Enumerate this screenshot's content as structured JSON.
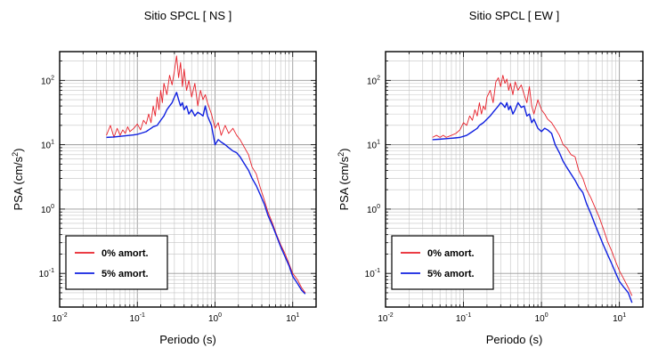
{
  "chart_data": [
    {
      "type": "line",
      "title": "Sitio SPCL [ NS ]",
      "xlabel": "Periodo (s)",
      "ylabel_main": "PSA (cm/s",
      "ylabel_sup": "2",
      "ylabel_end": ")",
      "xscale": "log",
      "yscale": "log",
      "xlim": [
        0.01,
        20
      ],
      "ylim": [
        0.03,
        280
      ],
      "grid": true,
      "legend": "bottom-left",
      "x_ticks": [
        {
          "value": 0.01,
          "base": "10",
          "exp": "-2"
        },
        {
          "value": 0.1,
          "base": "10",
          "exp": "-1"
        },
        {
          "value": 1,
          "base": "10",
          "exp": "0"
        },
        {
          "value": 10,
          "base": "10",
          "exp": "1"
        }
      ],
      "y_ticks": [
        {
          "value": 0.1,
          "base": "10",
          "exp": "-1"
        },
        {
          "value": 1,
          "base": "10",
          "exp": "0"
        },
        {
          "value": 10,
          "base": "10",
          "exp": "1"
        },
        {
          "value": 100,
          "base": "10",
          "exp": "2"
        }
      ],
      "series": [
        {
          "name": "0% amort.",
          "color": "#e8202a",
          "x": [
            0.04,
            0.045,
            0.05,
            0.055,
            0.06,
            0.065,
            0.07,
            0.075,
            0.08,
            0.09,
            0.1,
            0.11,
            0.12,
            0.13,
            0.14,
            0.15,
            0.16,
            0.17,
            0.18,
            0.19,
            0.2,
            0.21,
            0.22,
            0.24,
            0.26,
            0.28,
            0.3,
            0.32,
            0.34,
            0.36,
            0.38,
            0.4,
            0.43,
            0.46,
            0.5,
            0.55,
            0.6,
            0.65,
            0.7,
            0.75,
            0.8,
            0.9,
            1.0,
            1.1,
            1.2,
            1.35,
            1.5,
            1.7,
            1.9,
            2.1,
            2.4,
            2.7,
            3.0,
            3.4,
            3.8,
            4.3,
            4.8,
            5.5,
            6.2,
            7.0,
            8.0,
            9.0,
            10.0,
            11.5,
            13.0,
            14.5
          ],
          "y": [
            14,
            20,
            13,
            18,
            14,
            17,
            15,
            19,
            16,
            18,
            21,
            17,
            24,
            21,
            30,
            22,
            40,
            28,
            55,
            35,
            70,
            45,
            90,
            60,
            120,
            85,
            140,
            240,
            110,
            190,
            80,
            150,
            70,
            100,
            55,
            90,
            40,
            70,
            50,
            60,
            45,
            30,
            18,
            22,
            14,
            20,
            15,
            18,
            14,
            12,
            9,
            7,
            4.5,
            3.5,
            2.2,
            1.4,
            0.9,
            0.6,
            0.4,
            0.28,
            0.2,
            0.14,
            0.1,
            0.08,
            0.06,
            0.05
          ]
        },
        {
          "name": "5% amort.",
          "color": "#1020e0",
          "x": [
            0.04,
            0.05,
            0.06,
            0.07,
            0.08,
            0.09,
            0.1,
            0.11,
            0.12,
            0.13,
            0.14,
            0.15,
            0.16,
            0.18,
            0.2,
            0.22,
            0.24,
            0.26,
            0.28,
            0.3,
            0.32,
            0.34,
            0.36,
            0.38,
            0.4,
            0.43,
            0.46,
            0.5,
            0.55,
            0.6,
            0.65,
            0.7,
            0.75,
            0.8,
            0.9,
            1.0,
            1.1,
            1.2,
            1.35,
            1.5,
            1.7,
            1.9,
            2.1,
            2.4,
            2.7,
            3.0,
            3.4,
            3.8,
            4.3,
            4.8,
            5.5,
            6.2,
            7.0,
            8.0,
            9.0,
            10.0,
            11.5,
            13.0,
            14.5
          ],
          "y": [
            13,
            13.2,
            13.5,
            13.8,
            14,
            14.2,
            14.5,
            15,
            15.5,
            16,
            17,
            18,
            19,
            20,
            24,
            28,
            35,
            40,
            45,
            55,
            65,
            50,
            40,
            45,
            35,
            40,
            30,
            35,
            28,
            32,
            30,
            28,
            40,
            28,
            20,
            10,
            12,
            11,
            10,
            9,
            8,
            7.5,
            6.5,
            5,
            4,
            3,
            2.3,
            1.7,
            1.2,
            0.8,
            0.55,
            0.38,
            0.26,
            0.18,
            0.13,
            0.09,
            0.07,
            0.055,
            0.048
          ]
        }
      ]
    },
    {
      "type": "line",
      "title": "Sitio SPCL [ EW ]",
      "xlabel": "Periodo (s)",
      "ylabel_main": "PSA (cm/s",
      "ylabel_sup": "2",
      "ylabel_end": ")",
      "xscale": "log",
      "yscale": "log",
      "xlim": [
        0.01,
        20
      ],
      "ylim": [
        0.03,
        280
      ],
      "grid": true,
      "legend": "bottom-left",
      "x_ticks": [
        {
          "value": 0.01,
          "base": "10",
          "exp": "-2"
        },
        {
          "value": 0.1,
          "base": "10",
          "exp": "-1"
        },
        {
          "value": 1,
          "base": "10",
          "exp": "0"
        },
        {
          "value": 10,
          "base": "10",
          "exp": "1"
        }
      ],
      "y_ticks": [
        {
          "value": 0.1,
          "base": "10",
          "exp": "-1"
        },
        {
          "value": 1,
          "base": "10",
          "exp": "0"
        },
        {
          "value": 10,
          "base": "10",
          "exp": "1"
        },
        {
          "value": 100,
          "base": "10",
          "exp": "2"
        }
      ],
      "series": [
        {
          "name": "0% amort.",
          "color": "#e8202a",
          "x": [
            0.04,
            0.045,
            0.05,
            0.055,
            0.06,
            0.07,
            0.08,
            0.09,
            0.1,
            0.11,
            0.12,
            0.13,
            0.14,
            0.15,
            0.16,
            0.17,
            0.18,
            0.19,
            0.2,
            0.22,
            0.24,
            0.26,
            0.28,
            0.3,
            0.32,
            0.34,
            0.36,
            0.38,
            0.4,
            0.43,
            0.46,
            0.5,
            0.55,
            0.6,
            0.65,
            0.7,
            0.75,
            0.8,
            0.9,
            1.0,
            1.1,
            1.2,
            1.35,
            1.5,
            1.7,
            1.9,
            2.1,
            2.4,
            2.7,
            3.0,
            3.4,
            3.8,
            4.3,
            4.8,
            5.5,
            6.2,
            7.0,
            8.0,
            9.0,
            10.0,
            11.5,
            13.0,
            14.5
          ],
          "y": [
            13,
            14,
            13,
            14,
            13,
            14,
            15,
            17,
            22,
            20,
            28,
            24,
            35,
            28,
            45,
            30,
            40,
            35,
            55,
            70,
            45,
            95,
            110,
            80,
            120,
            90,
            105,
            70,
            90,
            60,
            95,
            70,
            85,
            60,
            45,
            80,
            40,
            30,
            50,
            35,
            30,
            25,
            22,
            18,
            14,
            10,
            9,
            7,
            6.5,
            4,
            3,
            2,
            1.5,
            1.1,
            0.75,
            0.5,
            0.32,
            0.22,
            0.15,
            0.11,
            0.08,
            0.06,
            0.045
          ]
        },
        {
          "name": "5% amort.",
          "color": "#1020e0",
          "x": [
            0.04,
            0.05,
            0.06,
            0.07,
            0.08,
            0.09,
            0.1,
            0.11,
            0.12,
            0.13,
            0.14,
            0.15,
            0.16,
            0.18,
            0.2,
            0.22,
            0.24,
            0.26,
            0.28,
            0.3,
            0.32,
            0.34,
            0.36,
            0.38,
            0.4,
            0.43,
            0.46,
            0.5,
            0.55,
            0.6,
            0.65,
            0.7,
            0.75,
            0.8,
            0.9,
            1.0,
            1.1,
            1.2,
            1.35,
            1.5,
            1.7,
            1.9,
            2.1,
            2.4,
            2.7,
            3.0,
            3.4,
            3.8,
            4.3,
            4.8,
            5.5,
            6.2,
            7.0,
            8.0,
            9.0,
            10.0,
            11.5,
            13.0,
            14.5
          ],
          "y": [
            12,
            12.2,
            12.4,
            12.6,
            12.8,
            13,
            13.5,
            14,
            15,
            16,
            17,
            18,
            20,
            22,
            25,
            28,
            32,
            36,
            40,
            45,
            42,
            38,
            45,
            35,
            40,
            30,
            35,
            45,
            38,
            40,
            28,
            30,
            22,
            25,
            18,
            16,
            18,
            17,
            15,
            10,
            7.5,
            5.5,
            4.5,
            3.5,
            2.8,
            2.2,
            1.8,
            1.2,
            0.85,
            0.6,
            0.4,
            0.28,
            0.2,
            0.14,
            0.1,
            0.075,
            0.06,
            0.05,
            0.035
          ]
        }
      ]
    }
  ]
}
